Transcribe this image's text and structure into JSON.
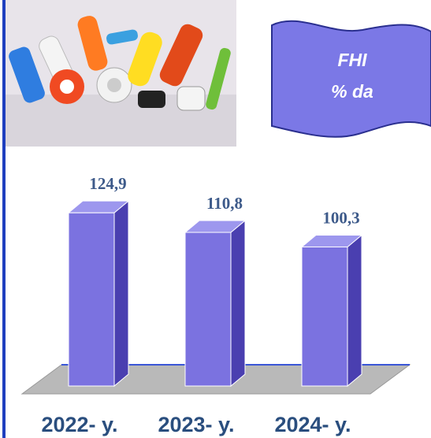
{
  "chart_data": {
    "type": "bar3d",
    "title": "FHI",
    "subtitle": "% da",
    "categories": [
      "2022- y.",
      "2023- y.",
      "2024- y."
    ],
    "values": [
      124.9,
      110.8,
      100.3
    ],
    "value_labels": [
      "124,9",
      "110,8",
      "100,3"
    ],
    "color": "#7b72e0"
  }
}
